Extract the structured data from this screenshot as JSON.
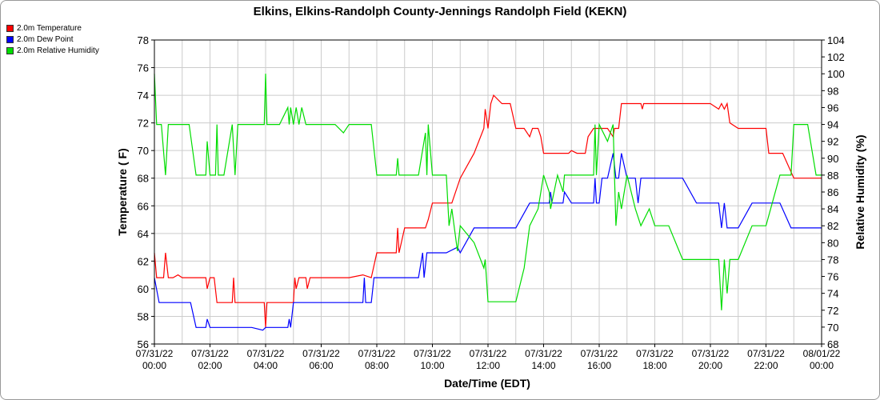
{
  "chart_data": {
    "type": "line",
    "title": "Elkins, Elkins-Randolph County-Jennings Randolph Field (KEKN)",
    "xlabel": "Date/Time (EDT)",
    "ylabel": "Temperature ( F)",
    "y2label": "Relative Humidity (%)",
    "ylim": [
      56,
      78
    ],
    "y2lim": [
      68,
      104
    ],
    "xlim_hours": [
      0,
      24
    ],
    "grid": true,
    "legend_position": "top-left",
    "x_ticks": [
      {
        "hour": 0,
        "date": "07/31/22",
        "time": "00:00"
      },
      {
        "hour": 2,
        "date": "07/31/22",
        "time": "02:00"
      },
      {
        "hour": 4,
        "date": "07/31/22",
        "time": "04:00"
      },
      {
        "hour": 6,
        "date": "07/31/22",
        "time": "06:00"
      },
      {
        "hour": 8,
        "date": "07/31/22",
        "time": "08:00"
      },
      {
        "hour": 10,
        "date": "07/31/22",
        "time": "10:00"
      },
      {
        "hour": 12,
        "date": "07/31/22",
        "time": "12:00"
      },
      {
        "hour": 14,
        "date": "07/31/22",
        "time": "14:00"
      },
      {
        "hour": 16,
        "date": "07/31/22",
        "time": "16:00"
      },
      {
        "hour": 18,
        "date": "07/31/22",
        "time": "18:00"
      },
      {
        "hour": 20,
        "date": "07/31/22",
        "time": "20:00"
      },
      {
        "hour": 22,
        "date": "07/31/22",
        "time": "22:00"
      },
      {
        "hour": 24,
        "date": "08/01/22",
        "time": "00:00"
      }
    ],
    "y_ticks": [
      "56",
      "58",
      "60",
      "62",
      "64",
      "66",
      "68",
      "70",
      "72",
      "74",
      "76",
      "78"
    ],
    "y2_ticks": [
      "68",
      "70",
      "72",
      "74",
      "76",
      "78",
      "80",
      "82",
      "84",
      "86",
      "88",
      "90",
      "92",
      "94",
      "96",
      "98",
      "100",
      "102",
      "104"
    ],
    "series": [
      {
        "name": "2.0m Temperature",
        "color": "#ff0000",
        "axis": "left",
        "x": [
          0,
          0.08,
          0.17,
          0.33,
          0.4,
          0.5,
          0.67,
          0.85,
          1.0,
          1.5,
          1.85,
          1.9,
          2.0,
          2.15,
          2.25,
          2.35,
          2.5,
          2.8,
          2.85,
          2.9,
          3.0,
          3.5,
          3.95,
          4.0,
          4.05,
          4.1,
          4.2,
          4.5,
          4.8,
          5.0,
          5.05,
          5.1,
          5.2,
          5.3,
          5.45,
          5.5,
          5.6,
          5.7,
          5.8,
          6.0,
          6.5,
          6.8,
          7.0,
          7.5,
          7.8,
          8.0,
          8.5,
          8.7,
          8.75,
          8.8,
          9.0,
          9.5,
          9.75,
          9.85,
          10.0,
          10.5,
          10.7,
          11.0,
          11.5,
          11.85,
          11.9,
          12.0,
          12.1,
          12.2,
          12.5,
          12.6,
          12.8,
          13.0,
          13.3,
          13.5,
          13.6,
          13.7,
          13.8,
          13.9,
          14.0,
          14.5,
          14.9,
          15.0,
          15.2,
          15.5,
          15.6,
          15.8,
          16.0,
          16.3,
          16.5,
          16.55,
          16.6,
          16.7,
          16.8,
          17.0,
          17.2,
          17.5,
          17.55,
          17.6,
          17.8,
          18.0,
          18.5,
          19.0,
          19.5,
          20.0,
          20.3,
          20.4,
          20.5,
          20.6,
          20.7,
          21.0,
          21.5,
          22.0,
          22.1,
          22.5,
          22.6,
          23.0,
          23.5,
          24.0
        ],
        "values": [
          62.6,
          60.8,
          60.8,
          60.8,
          62.6,
          60.8,
          60.8,
          61.0,
          60.8,
          60.8,
          60.8,
          60.0,
          60.8,
          60.8,
          59.0,
          59.0,
          59.0,
          59.0,
          60.8,
          59.0,
          59.0,
          59.0,
          59.0,
          57.2,
          59.0,
          59.0,
          59.0,
          59.0,
          59.0,
          59.0,
          60.8,
          60.0,
          60.8,
          60.8,
          60.8,
          60.0,
          60.8,
          60.8,
          60.8,
          60.8,
          60.8,
          60.8,
          60.8,
          61.0,
          60.8,
          62.6,
          62.6,
          62.6,
          64.4,
          62.6,
          64.4,
          64.4,
          64.4,
          65.0,
          66.2,
          66.2,
          66.2,
          68.0,
          69.8,
          71.6,
          73.0,
          71.6,
          73.4,
          74.0,
          73.4,
          73.4,
          73.4,
          71.6,
          71.6,
          71.0,
          71.6,
          71.6,
          71.6,
          71.0,
          69.8,
          69.8,
          69.8,
          70.0,
          69.8,
          69.8,
          71.0,
          71.6,
          71.6,
          71.6,
          71.0,
          71.6,
          71.6,
          71.6,
          73.4,
          73.4,
          73.4,
          73.4,
          73.0,
          73.4,
          73.4,
          73.4,
          73.4,
          73.4,
          73.4,
          73.4,
          73.0,
          73.4,
          73.0,
          73.4,
          72.0,
          71.6,
          71.6,
          71.6,
          69.8,
          69.8,
          69.8,
          68.0,
          68.0,
          68.0
        ]
      },
      {
        "name": "2.0m Dew Point",
        "color": "#0000ff",
        "axis": "left",
        "x": [
          0,
          0.17,
          0.5,
          1.0,
          1.3,
          1.5,
          1.85,
          1.9,
          2.0,
          2.5,
          2.9,
          3.0,
          3.5,
          3.9,
          4.0,
          4.5,
          4.8,
          4.85,
          4.9,
          5.0,
          5.5,
          6.0,
          6.5,
          7.0,
          7.5,
          7.55,
          7.6,
          7.8,
          7.9,
          8.0,
          8.7,
          8.75,
          8.8,
          9.0,
          9.5,
          9.65,
          9.7,
          9.8,
          10.0,
          10.5,
          10.9,
          11.0,
          11.5,
          11.8,
          11.9,
          12.0,
          12.5,
          13.0,
          13.5,
          13.8,
          14.0,
          14.2,
          14.25,
          14.3,
          14.5,
          14.7,
          14.75,
          15.0,
          15.5,
          15.8,
          15.85,
          15.9,
          16.0,
          16.1,
          16.3,
          16.5,
          16.6,
          16.7,
          16.8,
          17.0,
          17.2,
          17.3,
          17.4,
          17.5,
          17.8,
          18.0,
          18.5,
          19.0,
          19.5,
          20.0,
          20.3,
          20.4,
          20.5,
          20.6,
          20.7,
          21.0,
          21.5,
          22.0,
          22.5,
          22.9,
          23.0,
          23.5,
          23.8,
          24.0
        ],
        "values": [
          60.8,
          59.0,
          59.0,
          59.0,
          59.0,
          57.2,
          57.2,
          57.8,
          57.2,
          57.2,
          57.2,
          57.2,
          57.2,
          57.0,
          57.2,
          57.2,
          57.2,
          57.8,
          57.2,
          59.0,
          59.0,
          59.0,
          59.0,
          59.0,
          59.0,
          60.8,
          59.0,
          59.0,
          60.8,
          60.8,
          60.8,
          60.8,
          60.8,
          60.8,
          60.8,
          62.6,
          60.8,
          62.6,
          62.6,
          62.6,
          63.0,
          62.6,
          64.4,
          64.4,
          64.4,
          64.4,
          64.4,
          64.4,
          66.2,
          66.2,
          66.2,
          66.2,
          67.0,
          66.2,
          66.2,
          66.2,
          67.0,
          66.2,
          66.2,
          66.2,
          68.0,
          66.2,
          66.2,
          68.0,
          68.0,
          69.8,
          68.0,
          68.0,
          69.8,
          68.0,
          68.0,
          68.0,
          66.2,
          68.0,
          68.0,
          68.0,
          68.0,
          68.0,
          66.2,
          66.2,
          66.2,
          64.4,
          66.2,
          64.4,
          64.4,
          64.4,
          66.2,
          66.2,
          66.2,
          64.4,
          64.4,
          64.4,
          64.4,
          64.4
        ]
      },
      {
        "name": "2.0m Relative Humidity",
        "color": "#00dd00",
        "axis": "right",
        "x": [
          0,
          0.08,
          0.25,
          0.4,
          0.5,
          1.0,
          1.25,
          1.5,
          1.85,
          1.9,
          2.0,
          2.2,
          2.25,
          2.3,
          2.5,
          2.8,
          2.9,
          3.0,
          3.5,
          3.95,
          4.0,
          4.05,
          4.1,
          4.5,
          4.8,
          4.85,
          4.9,
          5.0,
          5.1,
          5.2,
          5.3,
          5.45,
          5.5,
          5.6,
          5.7,
          5.8,
          6.0,
          6.5,
          6.8,
          7.0,
          7.5,
          7.6,
          7.8,
          8.0,
          8.5,
          8.7,
          8.75,
          8.8,
          9.0,
          9.5,
          9.75,
          9.8,
          9.85,
          10.0,
          10.5,
          10.6,
          10.7,
          10.9,
          11.0,
          11.5,
          11.85,
          11.9,
          12.0,
          12.5,
          13.0,
          13.3,
          13.5,
          13.8,
          14.0,
          14.2,
          14.25,
          14.5,
          14.7,
          14.75,
          15.0,
          15.5,
          15.8,
          15.85,
          15.9,
          16.0,
          16.3,
          16.5,
          16.55,
          16.6,
          16.7,
          16.8,
          17.0,
          17.3,
          17.5,
          17.8,
          18.0,
          18.5,
          19.0,
          19.5,
          20.0,
          20.3,
          20.4,
          20.5,
          20.6,
          20.7,
          21.0,
          21.5,
          22.0,
          22.5,
          22.9,
          23.0,
          23.5,
          23.8,
          24.0
        ],
        "values": [
          100,
          94,
          94,
          88,
          94,
          94,
          94,
          88,
          88,
          92,
          88,
          88,
          94,
          88,
          88,
          94,
          88,
          94,
          94,
          94,
          100,
          94,
          94,
          94,
          96,
          94,
          96,
          94,
          96,
          94,
          96,
          94,
          94,
          94,
          94,
          94,
          94,
          94,
          93,
          94,
          94,
          94,
          94,
          88,
          88,
          88,
          90,
          88,
          88,
          88,
          93,
          88,
          94,
          88,
          88,
          82,
          84,
          79,
          82,
          80,
          77,
          78,
          73,
          73,
          73,
          77,
          82,
          84,
          88,
          86,
          84,
          88,
          86,
          88,
          88,
          88,
          88,
          94,
          88,
          94,
          92,
          94,
          88,
          82,
          86,
          84,
          88,
          84,
          82,
          84,
          82,
          82,
          78,
          78,
          78,
          78,
          72,
          78,
          74,
          78,
          78,
          82,
          82,
          88,
          88,
          94,
          94,
          88,
          88
        ]
      }
    ]
  }
}
